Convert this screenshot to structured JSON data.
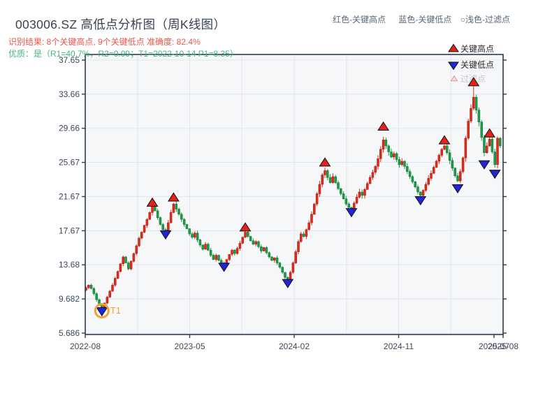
{
  "header": {
    "title": "003006.SZ 高低点分析图（周K线图）",
    "recognition": "识别结果: 8个关键高点, 9个关键低点  准确度: 82.4%",
    "quality": "优质：是（R1=40.7%，R2=0.99；T1=2022-10-14 P1=8.35）"
  },
  "header_legend": {
    "items": [
      "红色-关键高点",
      "蓝色-关键低点",
      "○浅色-过滤点"
    ]
  },
  "chart_data": {
    "type": "candlestick",
    "title": "003006.SZ 高低点分析图（周K线图）",
    "period": "weekly",
    "grid": true,
    "y_tick_labels": [
      "37.65",
      "33.66",
      "29.66",
      "25.67",
      "21.67",
      "17.67",
      "13.68",
      "9.682",
      "5.686"
    ],
    "y_tick_values": [
      37.65,
      33.66,
      29.66,
      25.67,
      21.67,
      17.67,
      13.68,
      9.682,
      5.686
    ],
    "y_range": [
      5.5,
      38.3
    ],
    "x_ticks": [
      {
        "label": "2022-08",
        "g": 0
      },
      {
        "label": "2023-05",
        "g": 2
      },
      {
        "label": "2024-02",
        "g": 4
      },
      {
        "label": "2024-11",
        "g": 6
      },
      {
        "label": "2025-08",
        "g": 8
      },
      {
        "label": "2025-07",
        "px": 707
      }
    ],
    "n_gridlines": 9,
    "legend": [
      {
        "label": "关键高点",
        "marker": "up",
        "color": "#e32219"
      },
      {
        "label": "关键低点",
        "marker": "down",
        "color": "#2323d8"
      },
      {
        "label": "过滤点",
        "marker": "up-pale",
        "color": "#f8ddd8"
      }
    ],
    "open_first": 10.7,
    "weekly_closes": [
      11.0,
      11.3,
      10.9,
      10.3,
      9.6,
      8.9,
      8.5,
      9.2,
      9.9,
      10.6,
      11.3,
      12.1,
      12.9,
      13.8,
      14.6,
      13.9,
      13.2,
      14.1,
      15.0,
      15.9,
      16.8,
      17.5,
      18.3,
      19.0,
      19.8,
      20.5,
      20.0,
      19.2,
      18.4,
      17.8,
      17.5,
      18.6,
      19.8,
      20.8,
      20.2,
      19.6,
      19.0,
      18.4,
      17.9,
      17.3,
      16.9,
      17.4,
      16.6,
      16.0,
      15.5,
      16.1,
      15.4,
      14.8,
      14.3,
      14.8,
      14.2,
      13.9,
      13.8,
      14.3,
      14.9,
      15.4,
      15.0,
      15.6,
      16.2,
      16.9,
      17.5,
      17.0,
      16.5,
      16.1,
      16.4,
      15.8,
      15.3,
      15.7,
      15.1,
      14.6,
      14.2,
      14.5,
      13.9,
      13.4,
      12.8,
      12.2,
      11.9,
      12.8,
      13.9,
      15.2,
      16.4,
      17.3,
      17.0,
      17.8,
      18.6,
      19.6,
      20.8,
      22.0,
      23.1,
      24.2,
      24.7,
      23.9,
      23.3,
      24.0,
      23.3,
      22.6,
      22.0,
      21.4,
      20.8,
      20.4,
      20.2,
      20.9,
      21.6,
      22.2,
      21.8,
      22.5,
      23.2,
      23.9,
      24.5,
      25.2,
      26.1,
      27.2,
      28.3,
      27.6,
      26.9,
      26.3,
      26.7,
      26.0,
      25.4,
      25.8,
      25.2,
      24.6,
      24.0,
      23.4,
      22.8,
      22.2,
      21.8,
      22.4,
      23.1,
      23.8,
      24.4,
      25.1,
      25.8,
      26.5,
      27.2,
      27.6,
      26.8,
      25.9,
      25.0,
      24.1,
      23.5,
      24.6,
      26.2,
      28.5,
      30.5,
      32.0,
      33.3,
      31.8,
      30.4,
      28.6,
      26.8,
      27.6,
      28.4,
      26.9,
      25.4,
      28.5,
      27.6
    ],
    "forced_low": {
      "week": 6,
      "value": 8.35
    },
    "forced_high": {
      "week": 146,
      "value": 34.6
    },
    "key_highs": [
      {
        "week": 25,
        "price": 20.9
      },
      {
        "week": 33,
        "price": 21.5
      },
      {
        "week": 60,
        "price": 18.0
      },
      {
        "week": 90,
        "price": 25.6
      },
      {
        "week": 112,
        "price": 29.8
      },
      {
        "week": 135,
        "price": 28.2
      },
      {
        "week": 146,
        "price": 35.0
      },
      {
        "week": 152,
        "price": 29.0
      }
    ],
    "key_lows": [
      {
        "week": 6,
        "price": 8.3
      },
      {
        "week": 30,
        "price": 17.3
      },
      {
        "week": 52,
        "price": 13.5
      },
      {
        "week": 76,
        "price": 11.6
      },
      {
        "week": 100,
        "price": 19.9
      },
      {
        "week": 126,
        "price": 21.3
      },
      {
        "week": 140,
        "price": 22.7
      },
      {
        "week": 150,
        "price": 25.5
      },
      {
        "week": 154,
        "price": 24.4
      }
    ],
    "t1_annotation": {
      "week": 6,
      "price": 8.3,
      "label": "T1"
    },
    "colors": {
      "up": "#dc2b1c",
      "up_edge": "#a81a0e",
      "down": "#1c9c47",
      "down_edge": "#11702f",
      "key_high": "#e32219",
      "key_low": "#2323d8",
      "filtered_fill": "#f8ddd8",
      "filtered_edge": "#cf9f9a",
      "t1": "#f4a133",
      "plot_bg": "#f6f7f9",
      "gridline": "#e2e5eb",
      "spine": "#2d3b4e",
      "tick_text": "#3c4858",
      "legend_text": "#2a2a2a",
      "legend_text_muted": "#c3c8cd"
    }
  }
}
